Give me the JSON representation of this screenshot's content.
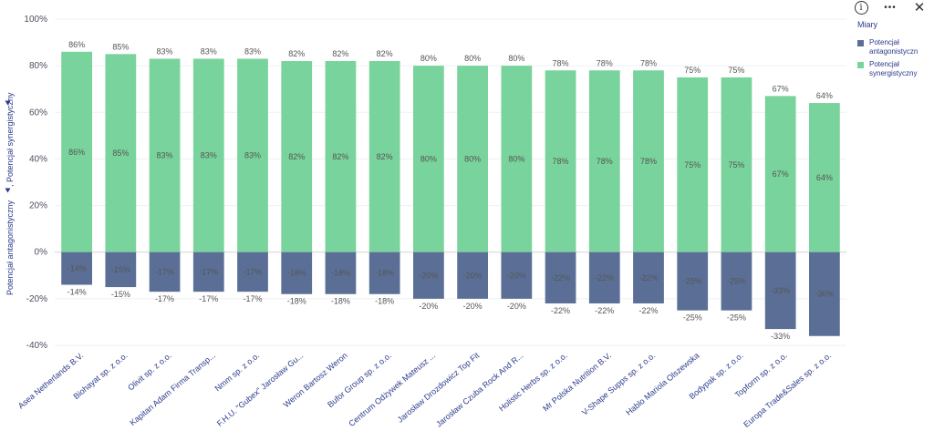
{
  "toolbar": {
    "info_icon": "info-icon",
    "more_icon": "more-icon",
    "close_icon": "close-icon",
    "info_glyph": "i",
    "more_glyph": "•••",
    "close_glyph": "✕"
  },
  "legend": {
    "title": "Miary",
    "items": [
      {
        "label": "Potencjał antagonistyczn",
        "color": "#5b6f96"
      },
      {
        "label": "Potencjał synergistyczny",
        "color": "#79d39c"
      }
    ]
  },
  "chart_data": {
    "type": "bar",
    "stacked": "diverging",
    "ylabel_parts": [
      "Potencjał antagonistyczny",
      ", Potencjał synergistyczny"
    ],
    "ylim": [
      -40,
      100
    ],
    "yticks": [
      -40,
      -20,
      0,
      20,
      40,
      60,
      80,
      100
    ],
    "categories": [
      "Asea Netherlands B.V.",
      "Biohayat sp. z o.o.",
      "Olivit sp. z o.o.",
      "Kapitan Adam Firma Transp...",
      "Nmm sp. z o.o.",
      "F.H.U. \"Gubex\" Jarosław Gu...",
      "Weron Bartosz Weron",
      "Bufor Group sp. z o.o.",
      "Centrum Odżywek Mateusz ...",
      "Jarosław Drozdowicz Top Fit",
      "Jarosław Czuba Rock And R...",
      "Holistic Herbs sp. z o.o.",
      "Mr Polska Nutrition B.V.",
      "V-Shape Supps sp. z o.o.",
      "Hablo Mariola Olszewska",
      "Bodypak sp. z o.o.",
      "Topform sp. z o.o.",
      "Europa Trade&Sales sp. z o.o."
    ],
    "series": [
      {
        "name": "Potencjał synergistyczny",
        "color": "#79d39c",
        "values": [
          86,
          85,
          83,
          83,
          83,
          82,
          82,
          82,
          80,
          80,
          80,
          78,
          78,
          78,
          75,
          75,
          67,
          64
        ]
      },
      {
        "name": "Potencjał antagonistyczn",
        "color": "#5b6f96",
        "values": [
          -14,
          -15,
          -17,
          -17,
          -17,
          -18,
          -18,
          -18,
          -20,
          -20,
          -20,
          -22,
          -22,
          -22,
          -25,
          -25,
          -33,
          -36
        ]
      }
    ],
    "pos_outside_labels": [
      "86%",
      "85%",
      "83%",
      "83%",
      "83%",
      "82%",
      "82%",
      "82%",
      "80%",
      "80%",
      "80%",
      "78%",
      "78%",
      "78%",
      "75%",
      "75%",
      "67%",
      "64%"
    ],
    "pos_inside_labels": [
      "86%",
      "85%",
      "83%",
      "83%",
      "83%",
      "82%",
      "82%",
      "82%",
      "80%",
      "80%",
      "80%",
      "78%",
      "78%",
      "78%",
      "75%",
      "75%",
      "67%",
      "64%"
    ],
    "neg_inside_labels": [
      "-14%",
      "-15%",
      "-17%",
      "-17%",
      "-17%",
      "-18%",
      "-18%",
      "-18%",
      "-20%",
      "-20%",
      "-20%",
      "-22%",
      "-22%",
      "-22%",
      "-25%",
      "-25%",
      "-33%",
      "-36%"
    ],
    "neg_outside_labels": [
      "-14%",
      "-15%",
      "-17%",
      "-17%",
      "-17%",
      "-18%",
      "-18%",
      "-18%",
      "-20%",
      "-20%",
      "-20%",
      "-22%",
      "-22%",
      "-22%",
      "-25%",
      "-25%",
      "-33%",
      ""
    ],
    "ytick_labels": [
      "-40%",
      "-20%",
      "0%",
      "20%",
      "40%",
      "60%",
      "80%",
      "100%"
    ]
  }
}
